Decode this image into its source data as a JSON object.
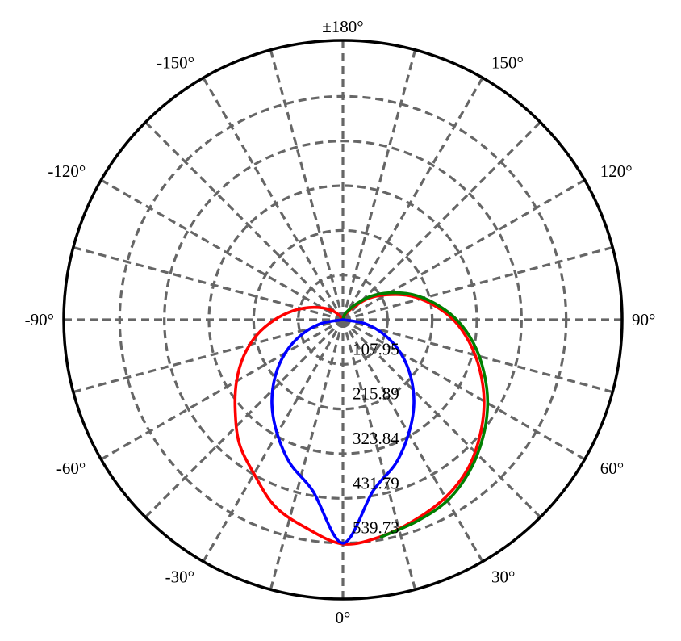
{
  "chart_data": {
    "type": "polar",
    "title": "",
    "angle_unit": "deg",
    "angle_zero": "bottom",
    "angle_ticks": [
      {
        "angle": 180,
        "label": "±180°"
      },
      {
        "angle": 150,
        "label": "150°"
      },
      {
        "angle": 120,
        "label": "120°"
      },
      {
        "angle": 90,
        "label": "90°"
      },
      {
        "angle": 60,
        "label": "60°"
      },
      {
        "angle": 30,
        "label": "30°"
      },
      {
        "angle": 0,
        "label": "0°"
      },
      {
        "angle": -30,
        "label": "-30°"
      },
      {
        "angle": -60,
        "label": "-60°"
      },
      {
        "angle": -90,
        "label": "-90°"
      },
      {
        "angle": -120,
        "label": "-120°"
      },
      {
        "angle": -150,
        "label": "-150°"
      }
    ],
    "radial_ticks": [
      {
        "value": 107.95,
        "label": "107.95"
      },
      {
        "value": 215.89,
        "label": "215.89"
      },
      {
        "value": 323.84,
        "label": "323.84"
      },
      {
        "value": 431.79,
        "label": "431.79"
      },
      {
        "value": 539.73,
        "label": "539.73"
      }
    ],
    "rmax": 675,
    "grid": true,
    "gridline_angle_step": 15,
    "series": [
      {
        "color": "#ff0000",
        "angles": [
          -150,
          -140,
          -130,
          -120,
          -110,
          -100,
          -90,
          -80,
          -70,
          -60,
          -50,
          -40,
          -30,
          -20,
          -10,
          0,
          10,
          20,
          30,
          40,
          50,
          60,
          70,
          80,
          90,
          100,
          110,
          120,
          130,
          140,
          150,
          160,
          170,
          180
        ],
        "values": [
          0,
          15,
          35,
          57,
          86,
          123,
          165,
          211,
          255,
          297,
          340,
          390,
          430,
          480,
          511,
          542,
          532,
          514,
          496,
          470,
          433,
          394,
          352,
          310,
          267,
          218,
          170,
          120,
          80,
          40,
          20,
          10,
          2,
          0
        ]
      },
      {
        "color": "#008000",
        "angles": [
          10,
          20,
          30,
          40,
          50,
          60,
          70,
          80,
          90,
          100,
          110,
          120,
          130,
          140,
          150,
          160,
          170,
          180
        ],
        "values": [
          533,
          519,
          505,
          477,
          442,
          404,
          362,
          320,
          275,
          226,
          178,
          130,
          88,
          49,
          26,
          15,
          5,
          0
        ]
      },
      {
        "color": "#0000ff",
        "angles": [
          -90,
          -80,
          -70,
          -60,
          -50,
          -40,
          -30,
          -20,
          -10,
          0,
          10,
          20,
          30,
          40,
          50,
          60,
          70,
          80,
          90
        ],
        "values": [
          0,
          54,
          107,
          161,
          214,
          267,
          318,
          371,
          420,
          540,
          420,
          371,
          318,
          267,
          214,
          161,
          107,
          54,
          0
        ]
      }
    ]
  }
}
